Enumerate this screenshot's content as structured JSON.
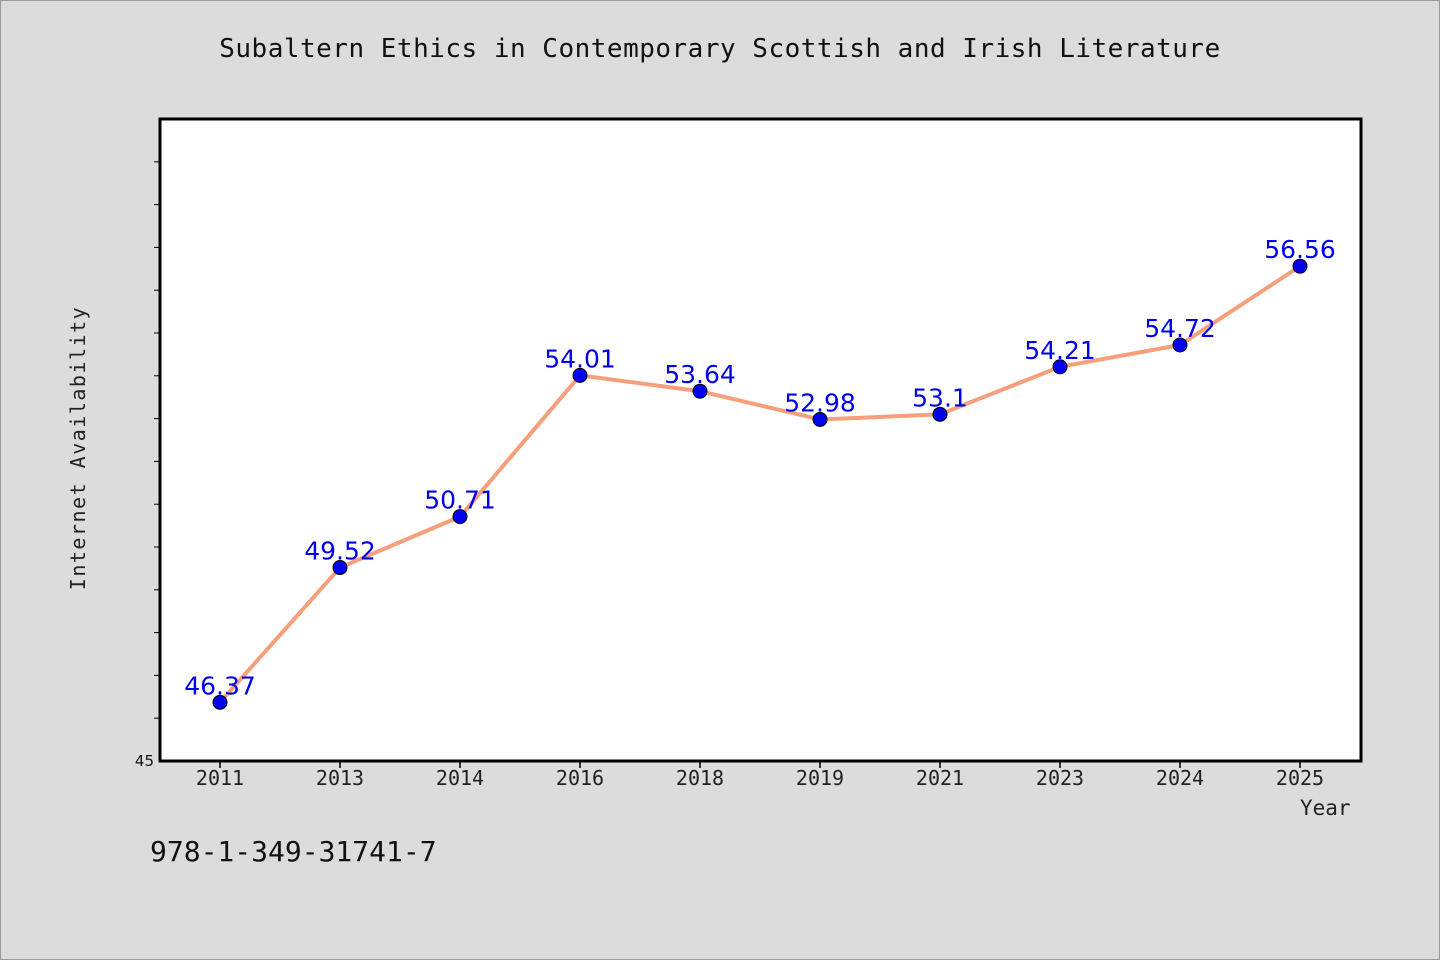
{
  "chart_data": {
    "type": "line",
    "title": "Subaltern Ethics in Contemporary Scottish and Irish Literature",
    "xlabel": "Year",
    "ylabel": "Internet Availability",
    "categories": [
      "2011",
      "2013",
      "2014",
      "2016",
      "2018",
      "2019",
      "2021",
      "2023",
      "2024",
      "2025"
    ],
    "series": [
      {
        "values": [
          46.37,
          49.52,
          50.71,
          54.01,
          53.64,
          52.98,
          53.1,
          54.21,
          54.72,
          56.56
        ],
        "data_labels": [
          "46.37",
          "49.52",
          "50.71",
          "54.01",
          "53.64",
          "52.98",
          "53.1",
          "54.21",
          "54.72",
          "56.56"
        ],
        "line_color": "#f5a07a",
        "marker_color": "#0000ee",
        "label_color": "#0000ee"
      }
    ],
    "ylim": [
      45,
      60
    ],
    "ytick_label": "45",
    "grid": false,
    "legend": "none"
  },
  "footnote": "978-1-349-31741-7"
}
